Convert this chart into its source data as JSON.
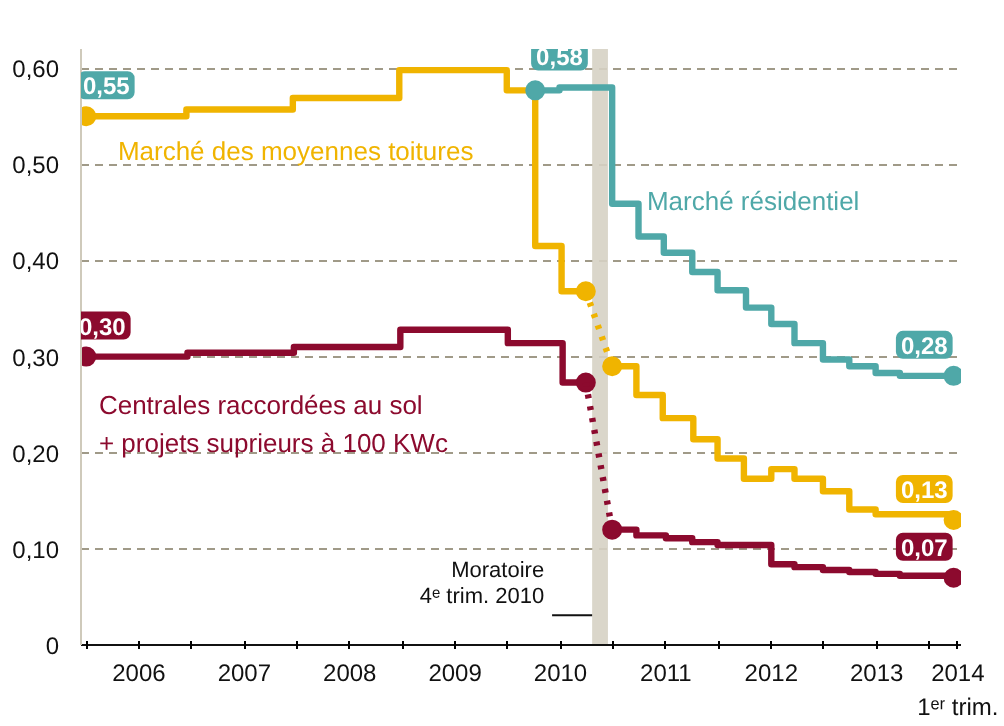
{
  "chart_data": {
    "type": "step",
    "xlim": [
      2005.95,
      2014.3
    ],
    "ylim": [
      0,
      0.62
    ],
    "annotations": [
      {
        "text": "0,55",
        "x": 2006.0,
        "y": 0.55
      }
    ],
    "xticks": [
      {
        "value": 2006,
        "label": null
      },
      {
        "value": 2006.5,
        "label": "2006"
      },
      {
        "value": 2007,
        "label": null
      },
      {
        "value": 2007.5,
        "label": "2007"
      },
      {
        "value": 2008,
        "label": null
      },
      {
        "value": 2008.5,
        "label": "2008"
      },
      {
        "value": 2009,
        "label": null
      },
      {
        "value": 2009.5,
        "label": "2009"
      },
      {
        "value": 2010,
        "label": null
      },
      {
        "value": 2010.5,
        "label": "2010"
      },
      {
        "value": 2011,
        "label": null
      },
      {
        "value": 2011.5,
        "label": "2011"
      },
      {
        "value": 2012,
        "label": null
      },
      {
        "value": 2012.5,
        "label": "2012"
      },
      {
        "value": 2013,
        "label": null
      },
      {
        "value": 2013.5,
        "label": "2013"
      },
      {
        "value": 2014,
        "label": null
      },
      {
        "value": 2014.27,
        "label": "2014\n1ᵉʳ trim."
      }
    ],
    "yticks": [
      0,
      {
        "value": 0.1,
        "label": "0,10"
      },
      {
        "value": 0.2,
        "label": "0,20"
      },
      {
        "value": 0.3,
        "label": "0,30"
      },
      {
        "value": 0.4,
        "label": "0,40"
      },
      {
        "value": 0.5,
        "label": "0,50"
      },
      {
        "value": 0.6,
        "label": "0,60"
      }
    ],
    "grid": "y",
    "bands": [
      {
        "axis": "x",
        "from": 2010.8,
        "to": 2010.95,
        "label": "Moratoire\n4ᵉ trim. 2010",
        "color": "#d6d2c4"
      }
    ],
    "series": [
      {
        "name": "Marché des moyennes toitures",
        "color": "#f0b400",
        "x": [
          2006.0,
          2006.95,
          2007.96,
          2008.97,
          2009.99,
          2010.26,
          2010.51,
          2010.74
        ],
        "values": [
          0.55,
          0.557,
          0.569,
          0.598,
          0.577,
          0.415,
          0.368,
          0.368
        ],
        "value_labels": [
          null,
          null,
          null,
          null,
          null,
          null,
          null,
          null
        ]
      },
      {
        "color": "#f0b400",
        "type": "line",
        "line_style": "dotted",
        "x": [
          2010.74,
          2010.99
        ],
        "values": [
          0.368,
          0.29
        ]
      },
      {
        "color": "#f0b400",
        "x": [
          2010.99,
          2011.22,
          2011.47,
          2011.76,
          2011.99,
          2012.24,
          2012.5,
          2012.72,
          2012.99,
          2013.24,
          2013.49,
          2014.23
        ],
        "values": [
          0.29,
          0.26,
          0.236,
          0.214,
          0.194,
          0.173,
          0.183,
          0.173,
          0.16,
          0.141,
          0.136,
          0.13
        ],
        "value_labels": [
          null,
          null,
          null,
          null,
          null,
          null,
          null,
          null,
          null,
          null,
          null,
          "0,13"
        ]
      },
      {
        "name": "Marché résidentiel",
        "color": "#4fa8a8",
        "x": [
          2010.26,
          2010.49,
          2010.99,
          2011.24,
          2011.48,
          2011.75,
          2011.99,
          2012.26,
          2012.5,
          2012.72,
          2012.99,
          2013.24,
          2013.49,
          2013.72,
          2014.23
        ],
        "values": [
          0.577,
          0.58,
          0.459,
          0.425,
          0.408,
          0.388,
          0.369,
          0.351,
          0.334,
          0.314,
          0.297,
          0.29,
          0.283,
          0.28,
          0.28
        ],
        "value_labels": [
          null,
          "0,58",
          null,
          null,
          null,
          null,
          null,
          null,
          null,
          null,
          null,
          null,
          null,
          null,
          "0,28"
        ]
      },
      {
        "name": "Centrales raccordées au sol\n+ projets suprieurs à 100 KWc",
        "color": "#8c0a2e",
        "x": [
          2006.0,
          2006.96,
          2007.97,
          2008.98,
          2010.0,
          2010.52,
          2010.74
        ],
        "values": [
          0.3,
          0.304,
          0.31,
          0.328,
          0.314,
          0.273,
          0.273
        ],
        "value_labels": [
          "0,30",
          null,
          null,
          null,
          null,
          null,
          null
        ]
      },
      {
        "color": "#8c0a2e",
        "type": "line",
        "line_style": "dotted",
        "x": [
          2010.74,
          2010.99
        ],
        "values": [
          0.273,
          0.12
        ]
      },
      {
        "color": "#8c0a2e",
        "x": [
          2010.99,
          2011.22,
          2011.5,
          2011.75,
          2011.99,
          2012.5,
          2012.72,
          2012.99,
          2013.24,
          2013.49,
          2013.72,
          2014.23
        ],
        "values": [
          0.12,
          0.114,
          0.111,
          0.107,
          0.104,
          0.084,
          0.081,
          0.078,
          0.076,
          0.074,
          0.072,
          0.07
        ],
        "value_labels": [
          null,
          null,
          null,
          null,
          null,
          null,
          null,
          null,
          null,
          null,
          null,
          "0,07"
        ]
      }
    ]
  }
}
